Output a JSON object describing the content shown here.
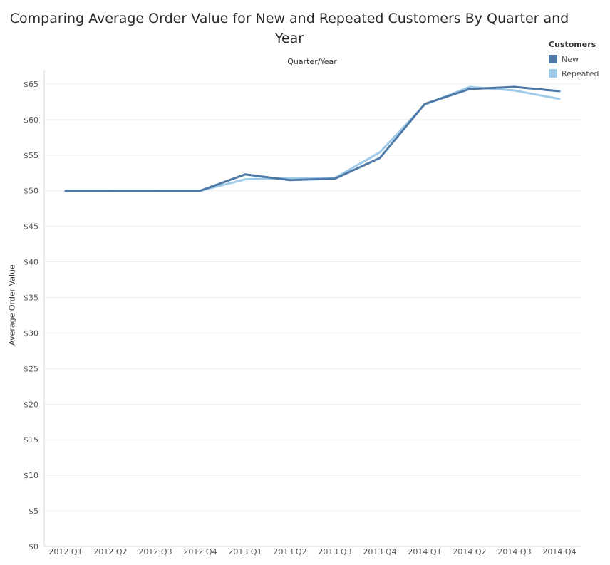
{
  "chart_data": {
    "type": "line",
    "title": "Comparing Average Order Value for New and Repeated Customers By Quarter and Year",
    "xlabel": "Quarter/Year",
    "ylabel": "Average Order Value",
    "categories": [
      "2012 Q1",
      "2012 Q2",
      "2012 Q3",
      "2012 Q4",
      "2013 Q1",
      "2013 Q2",
      "2013 Q3",
      "2013 Q4",
      "2014 Q1",
      "2014 Q2",
      "2014 Q3",
      "2014 Q4"
    ],
    "ylim": [
      0,
      67
    ],
    "yticks": [
      0,
      5,
      10,
      15,
      20,
      25,
      30,
      35,
      40,
      45,
      50,
      55,
      60,
      65
    ],
    "ytick_prefix": "$",
    "grid": true,
    "legend": {
      "title": "Customers",
      "position": "top-right"
    },
    "series": [
      {
        "name": "New",
        "color": "#4e79a7",
        "values": [
          50.0,
          50.0,
          50.0,
          50.0,
          52.3,
          51.5,
          51.7,
          54.6,
          62.2,
          64.3,
          64.6,
          64.0
        ]
      },
      {
        "name": "Repeated",
        "color": "#a0cbe8",
        "values": [
          50.0,
          50.0,
          50.0,
          50.0,
          51.6,
          51.8,
          51.8,
          55.4,
          62.1,
          64.6,
          64.1,
          62.9
        ]
      }
    ]
  }
}
